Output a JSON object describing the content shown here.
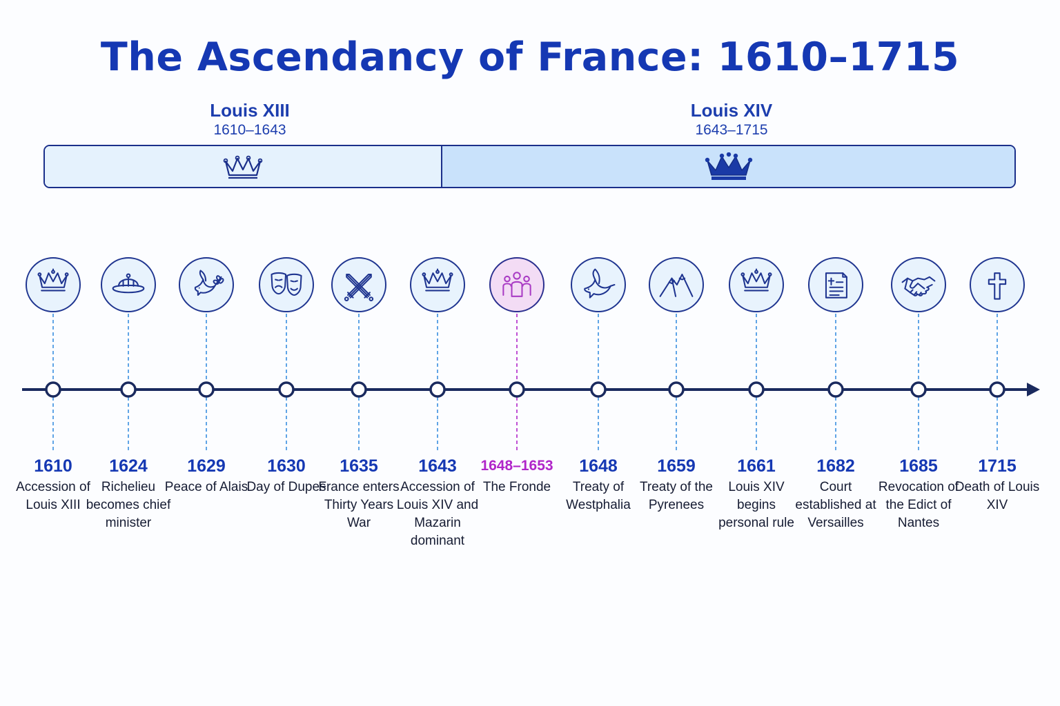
{
  "title": "The Ascendancy of France: 1610–1715",
  "reigns": [
    {
      "name": "Louis XIII",
      "years": "1610–1643",
      "icon": "crown-outline-icon"
    },
    {
      "name": "Louis XIV",
      "years": "1643–1715",
      "icon": "crown-filled-icon"
    }
  ],
  "colors": {
    "primary": "#1538b3",
    "line": "#1a2a5e",
    "connector": "#3a8fe0",
    "highlight": "#b025c9",
    "reign1_fill": "#e5f2fd",
    "reign2_fill": "#c9e2fb"
  },
  "events": [
    {
      "year": "1610",
      "label": "Accession of Louis XIII",
      "icon": "crown-icon"
    },
    {
      "year": "1624",
      "label": "Richelieu becomes chief minister",
      "icon": "cardinal-hat-icon"
    },
    {
      "year": "1629",
      "label": "Peace of Alais",
      "icon": "dove-olive-branch-icon"
    },
    {
      "year": "1630",
      "label": "Day of Dupes",
      "icon": "theater-masks-icon"
    },
    {
      "year": "1635",
      "label": "France enters Thirty Years War",
      "icon": "crossed-swords-icon"
    },
    {
      "year": "1643",
      "label": "Accession of Louis XIV and Mazarin dominant",
      "icon": "crown-icon"
    },
    {
      "year": "1648–1653",
      "label": "The Fronde",
      "icon": "group-people-icon",
      "highlight": true
    },
    {
      "year": "1648",
      "label": "Treaty of Westphalia",
      "icon": "dove-icon"
    },
    {
      "year": "1659",
      "label": "Treaty of the Pyrenees",
      "icon": "mountains-icon"
    },
    {
      "year": "1661",
      "label": "Louis XIV begins personal rule",
      "icon": "crown-icon"
    },
    {
      "year": "1682",
      "label": "Court established at Versailles",
      "icon": "document-scroll-icon"
    },
    {
      "year": "1685",
      "label": "Revocation of the Edict of Nantes",
      "icon": "handshake-icon"
    },
    {
      "year": "1715",
      "label": "Death of Louis XIV",
      "icon": "cross-icon"
    }
  ]
}
